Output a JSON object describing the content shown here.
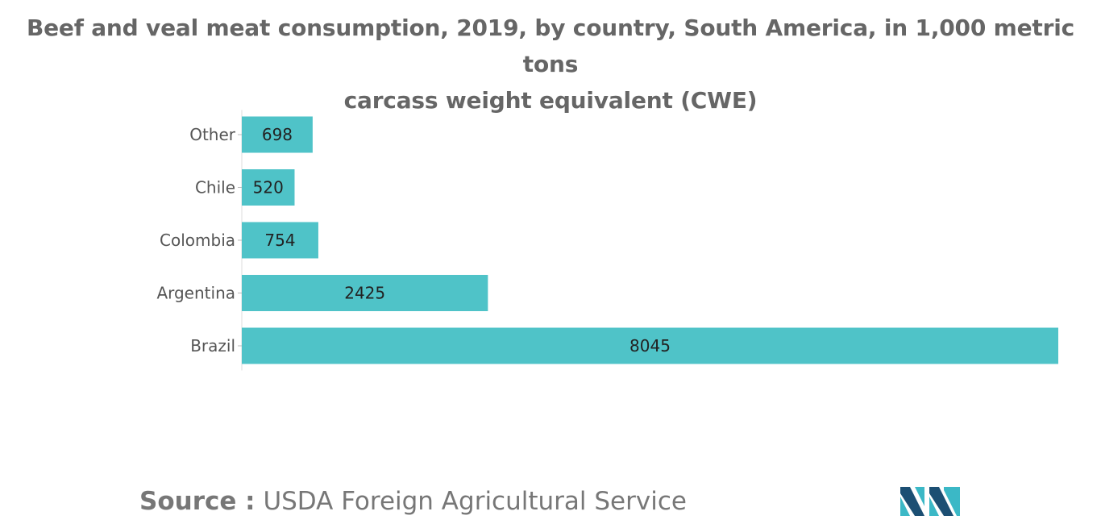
{
  "title_line1": "Beef and veal meat consumption, 2019, by country, South America, in 1,000 metric tons",
  "title_line2": "carcass weight equivalent (CWE)",
  "source": {
    "label": "Source :",
    "text": "USDA Foreign Agricultural Service"
  },
  "logo": {
    "icon": "mordor-intelligence-logo-icon"
  },
  "colors": {
    "bar": "#4fc3c8",
    "logo_dark": "#1c4f73",
    "logo_light": "#3bb8c6"
  },
  "chart_data": {
    "type": "bar",
    "orientation": "horizontal",
    "categories": [
      "Other",
      "Chile",
      "Colombia",
      "Argentina",
      "Brazil"
    ],
    "values": [
      698,
      520,
      754,
      2425,
      8045
    ],
    "value_labels": [
      "698",
      "520",
      "754",
      "2425",
      "8045"
    ],
    "xlim": [
      0,
      8045
    ],
    "grid": false,
    "legend": "none",
    "data_labels": "inside-center"
  }
}
